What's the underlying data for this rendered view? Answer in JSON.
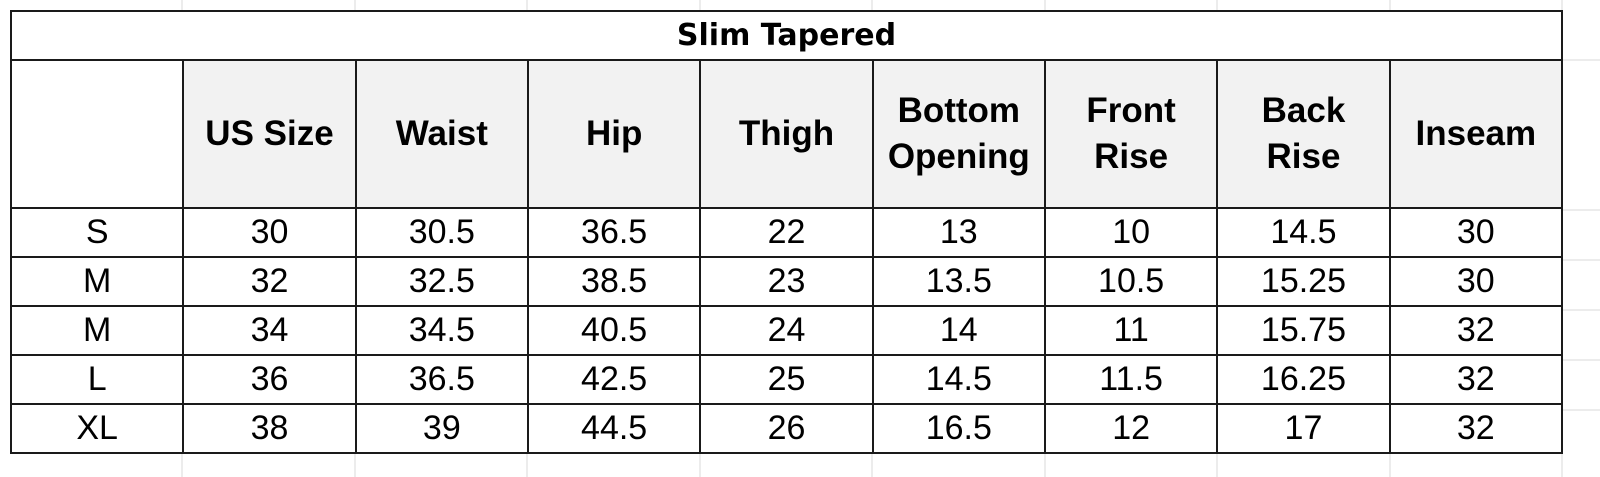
{
  "table": {
    "title": "Slim Tapered",
    "columns": [
      "US Size",
      "Waist",
      "Hip",
      "Thigh",
      "Bottom\nOpening",
      "Front\nRise",
      "Back\nRise",
      "Inseam"
    ],
    "rows": [
      {
        "label": "S",
        "values": [
          30,
          30.5,
          36.5,
          22,
          13,
          10,
          14.5,
          30
        ]
      },
      {
        "label": "M",
        "values": [
          32,
          32.5,
          38.5,
          23,
          13.5,
          10.5,
          15.25,
          30
        ]
      },
      {
        "label": "M",
        "values": [
          34,
          34.5,
          40.5,
          24,
          14,
          11,
          15.75,
          32
        ]
      },
      {
        "label": "L",
        "values": [
          36,
          36.5,
          42.5,
          25,
          14.5,
          11.5,
          16.25,
          32
        ]
      },
      {
        "label": "XL",
        "values": [
          38,
          39,
          44.5,
          26,
          16.5,
          12,
          17,
          32
        ]
      }
    ]
  }
}
